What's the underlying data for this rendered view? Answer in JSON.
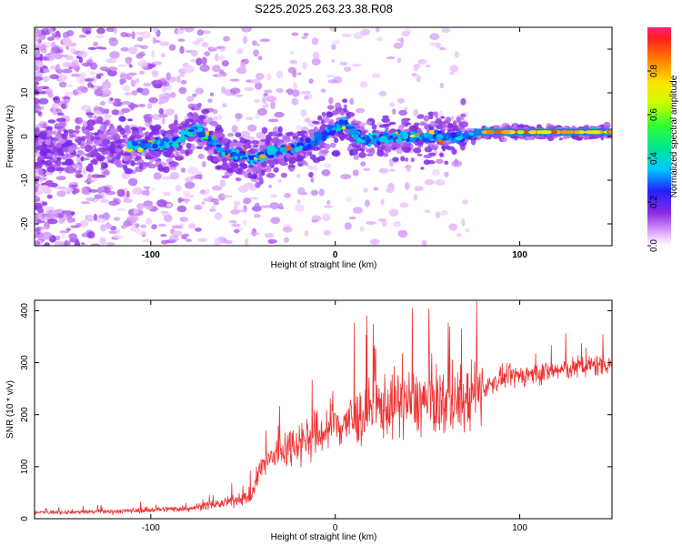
{
  "page_title": "S225.2025.263.23.38.R08",
  "chart_data": [
    {
      "type": "heatmap",
      "title": "S225.2025.263.23.38.R08",
      "xlabel": "Height of straight line (km)",
      "ylabel": "Frequency (Hz)",
      "xlim": [
        -163,
        150
      ],
      "ylim": [
        -25,
        25
      ],
      "xticks": [
        -100,
        0,
        100
      ],
      "yticks": [
        -20,
        -10,
        0,
        10,
        20
      ],
      "colorbar": {
        "label": "Normalized spectral amplitude",
        "range": [
          0,
          1
        ],
        "ticks": [
          0.0,
          0.2,
          0.4,
          0.6,
          0.8
        ]
      },
      "ridge": {
        "description_points_x": [
          -110,
          -90,
          -75,
          -60,
          -45,
          -30,
          -15,
          0,
          5,
          15,
          30,
          50,
          70,
          80,
          100,
          150
        ],
        "description_points_y": [
          -2,
          -2,
          2,
          -4,
          -5,
          -3,
          -2,
          2,
          3,
          -1,
          0,
          0,
          0,
          1,
          1,
          1
        ]
      }
    },
    {
      "type": "line",
      "title": "",
      "xlabel": "Height of straight line (km)",
      "ylabel": "SNR (10 * v/v)",
      "xlim": [
        -163,
        150
      ],
      "ylim": [
        0,
        420
      ],
      "xticks": [
        -100,
        0,
        100
      ],
      "yticks": [
        0,
        100,
        200,
        300,
        400
      ],
      "color": "#ee3333",
      "trend": {
        "x": [
          -163,
          -120,
          -80,
          -60,
          -45,
          -40,
          -30,
          -20,
          -10,
          0,
          10,
          20,
          30,
          40,
          50,
          60,
          70,
          80,
          90,
          100,
          120,
          150
        ],
        "y": [
          12,
          14,
          20,
          30,
          45,
          100,
          130,
          150,
          160,
          180,
          190,
          210,
          220,
          225,
          225,
          225,
          225,
          250,
          270,
          275,
          285,
          300
        ]
      }
    }
  ]
}
